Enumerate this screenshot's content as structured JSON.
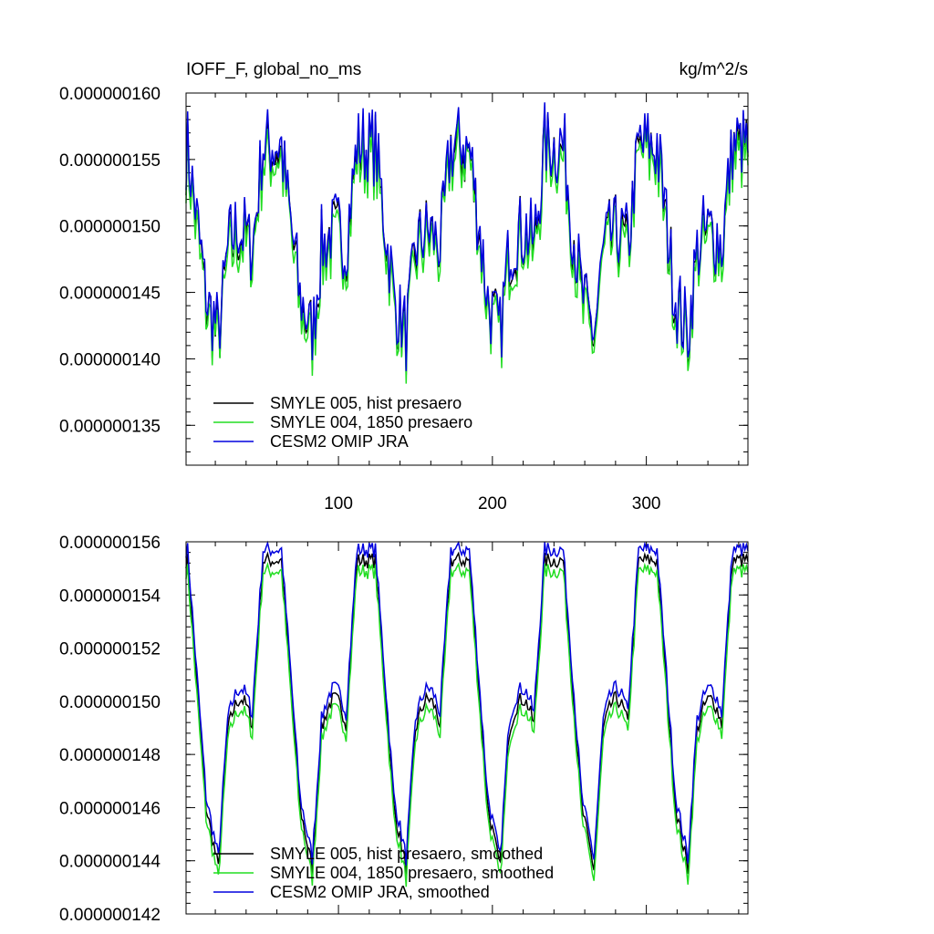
{
  "chart_data": [
    {
      "type": "line",
      "title_left": "IOFF_F, global_no_ms",
      "title_right": "kg/m^2/s",
      "xlabel": "",
      "ylabel": "",
      "xlim": [
        1,
        366
      ],
      "ylim": [
        1.32e-07,
        1.6e-07
      ],
      "yticks": [
        "0.000000160",
        "0.000000155",
        "0.000000150",
        "0.000000145",
        "0.000000140",
        "0.000000135"
      ],
      "ytick_values": [
        1.6e-07,
        1.55e-07,
        1.5e-07,
        1.45e-07,
        1.4e-07,
        1.35e-07
      ],
      "xticks": [
        "100",
        "200",
        "300"
      ],
      "xtick_values": [
        100,
        200,
        300
      ],
      "description_of_pattern": "six-peak seasonal cycle, daily resolution",
      "series": [
        {
          "name": "SMYLE 005, hist presaero",
          "color": "#000000",
          "base": 1.46e-07,
          "amp": 9.5e-09,
          "noise": 3e-09,
          "offset": 0.0
        },
        {
          "name": "SMYLE 004, 1850 presaero",
          "color": "#22dd22",
          "base": 1.455e-07,
          "amp": 9.3e-09,
          "noise": 3e-09,
          "offset": -6e-10
        },
        {
          "name": "CESM2 OMIP JRA",
          "color": "#0000dd",
          "base": 1.465e-07,
          "amp": 9.8e-09,
          "noise": 3.2e-09,
          "offset": 4e-10
        }
      ],
      "legend": [
        "SMYLE 005, hist presaero",
        "SMYLE 004, 1850 presaero",
        "CESM2 OMIP JRA"
      ]
    },
    {
      "type": "line",
      "xlim": [
        1,
        366
      ],
      "ylim": [
        1.42e-07,
        1.56e-07
      ],
      "yticks": [
        "0.000000156",
        "0.000000154",
        "0.000000152",
        "0.000000150",
        "0.000000148",
        "0.000000146",
        "0.000000144",
        "0.000000142"
      ],
      "ytick_values": [
        1.56e-07,
        1.54e-07,
        1.52e-07,
        1.5e-07,
        1.48e-07,
        1.46e-07,
        1.44e-07,
        1.42e-07
      ],
      "xticks": [],
      "series": [
        {
          "name": "SMYLE 005, hist presaero, smoothed",
          "color": "#000000",
          "offset": 0.0
        },
        {
          "name": "SMYLE 004, 1850 presaero, smoothed",
          "color": "#22dd22",
          "offset": -4e-10
        },
        {
          "name": "CESM2 OMIP JRA, smoothed",
          "color": "#0000dd",
          "offset": 4e-10
        }
      ],
      "legend": [
        "SMYLE 005, hist presaero, smoothed",
        "SMYLE 004, 1850 presaero, smoothed",
        "CESM2 OMIP JRA, smoothed"
      ]
    }
  ]
}
